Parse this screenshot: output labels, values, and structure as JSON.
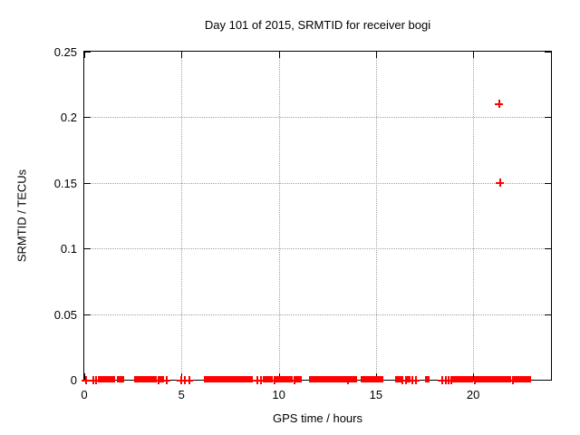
{
  "chart_data": {
    "type": "scatter",
    "title": "Day 101 of 2015, SRMTID for receiver bogi",
    "xlabel": "GPS time / hours",
    "ylabel": "SRMTID / TECUs",
    "xlim": [
      0,
      24
    ],
    "ylim": [
      0,
      0.25
    ],
    "xticks": [
      0,
      5,
      10,
      15,
      20
    ],
    "yticks": [
      0,
      0.05,
      0.1,
      0.15,
      0.2,
      0.25
    ],
    "grid": true,
    "legend": "none",
    "marker": "plus",
    "marker_color": "#ff0000",
    "grid_color": "#a0a0a0",
    "series": [
      {
        "name": "SRMTID",
        "outlier_points": [
          [
            21.3,
            0.21
          ],
          [
            21.39,
            0.15
          ]
        ],
        "zero_points": [
          0.05,
          0.46,
          0.6,
          3.8,
          4.21,
          4.98,
          5.17,
          5.39,
          8.87,
          9.05,
          9.74,
          10.79,
          13.56,
          16.35,
          16.51,
          16.85,
          17.01,
          18.37,
          18.56,
          18.73,
          18.87,
          20.05,
          22.02
        ],
        "zero_segments": [
          [
            0.75,
            1.55
          ],
          [
            1.74,
            2.02
          ],
          [
            2.61,
            3.39
          ],
          [
            3.45,
            3.7
          ],
          [
            3.88,
            4.07
          ],
          [
            6.18,
            6.84
          ],
          [
            6.9,
            7.02
          ],
          [
            7.08,
            7.36
          ],
          [
            7.43,
            7.55
          ],
          [
            7.61,
            8.36
          ],
          [
            8.45,
            8.64
          ],
          [
            9.23,
            9.35
          ],
          [
            9.41,
            9.63
          ],
          [
            9.85,
            10.13
          ],
          [
            10.19,
            10.38
          ],
          [
            10.44,
            10.69
          ],
          [
            10.91,
            11.13
          ],
          [
            11.59,
            11.81
          ],
          [
            11.87,
            11.96
          ],
          [
            12.06,
            13.45
          ],
          [
            13.67,
            13.8
          ],
          [
            13.86,
            13.98
          ],
          [
            14.26,
            14.88
          ],
          [
            14.95,
            15.2
          ],
          [
            15.26,
            15.35
          ],
          [
            16.03,
            16.25
          ],
          [
            16.62,
            16.75
          ],
          [
            17.59,
            17.71
          ],
          [
            18.98,
            19.42
          ],
          [
            19.51,
            19.95
          ],
          [
            20.17,
            20.51
          ],
          [
            20.57,
            20.73
          ],
          [
            20.79,
            21.16
          ],
          [
            21.22,
            21.38
          ],
          [
            21.44,
            21.91
          ],
          [
            22.13,
            22.25
          ],
          [
            22.31,
            22.56
          ],
          [
            22.62,
            22.93
          ]
        ]
      }
    ]
  }
}
